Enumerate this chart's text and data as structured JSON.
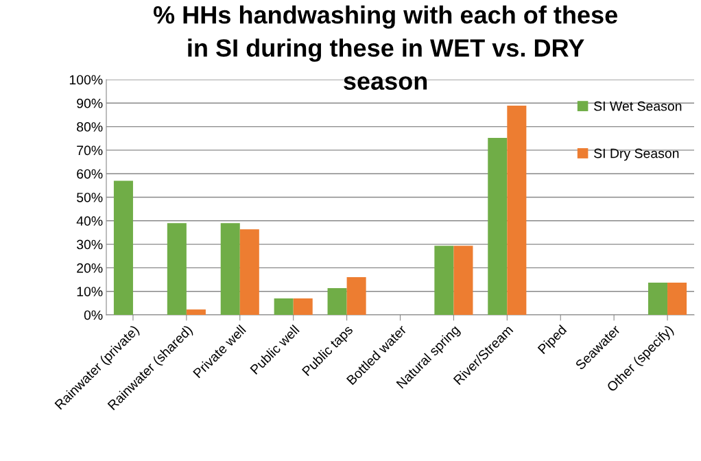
{
  "chart_data": {
    "type": "bar",
    "title": "% HHs handwashing with each of these\nin SI during these in WET vs. DRY\nseason",
    "categories": [
      "Rainwater (private)",
      "Rainwater (shared)",
      "Private well",
      "Public well",
      "Public taps",
      "Bottled water",
      "Natural spring",
      "River/Stream",
      "Piped",
      "Seawater",
      "Other (specify)"
    ],
    "series": [
      {
        "name": "SI Wet Season",
        "color": "#70ad47",
        "values": [
          57,
          39,
          39,
          7,
          11.4,
          0,
          29.4,
          75.2,
          0,
          0,
          13.7
        ]
      },
      {
        "name": "SI Dry Season",
        "color": "#ed7d31",
        "values": [
          0,
          2.3,
          36.4,
          7,
          16,
          0,
          29.4,
          88.9,
          0,
          0,
          13.7
        ]
      }
    ],
    "ylim": [
      0,
      100
    ],
    "yticks": [
      {
        "value": 0,
        "label": "0%"
      },
      {
        "value": 10,
        "label": "10%"
      },
      {
        "value": 20,
        "label": "20%"
      },
      {
        "value": 30,
        "label": "30%"
      },
      {
        "value": 40,
        "label": "40%"
      },
      {
        "value": 50,
        "label": "50%"
      },
      {
        "value": 60,
        "label": "60%"
      },
      {
        "value": 70,
        "label": "70%"
      },
      {
        "value": 80,
        "label": "80%"
      },
      {
        "value": 90,
        "label": "90%"
      },
      {
        "value": 100,
        "label": "100%"
      }
    ],
    "grid": "y",
    "legend": "top right"
  }
}
